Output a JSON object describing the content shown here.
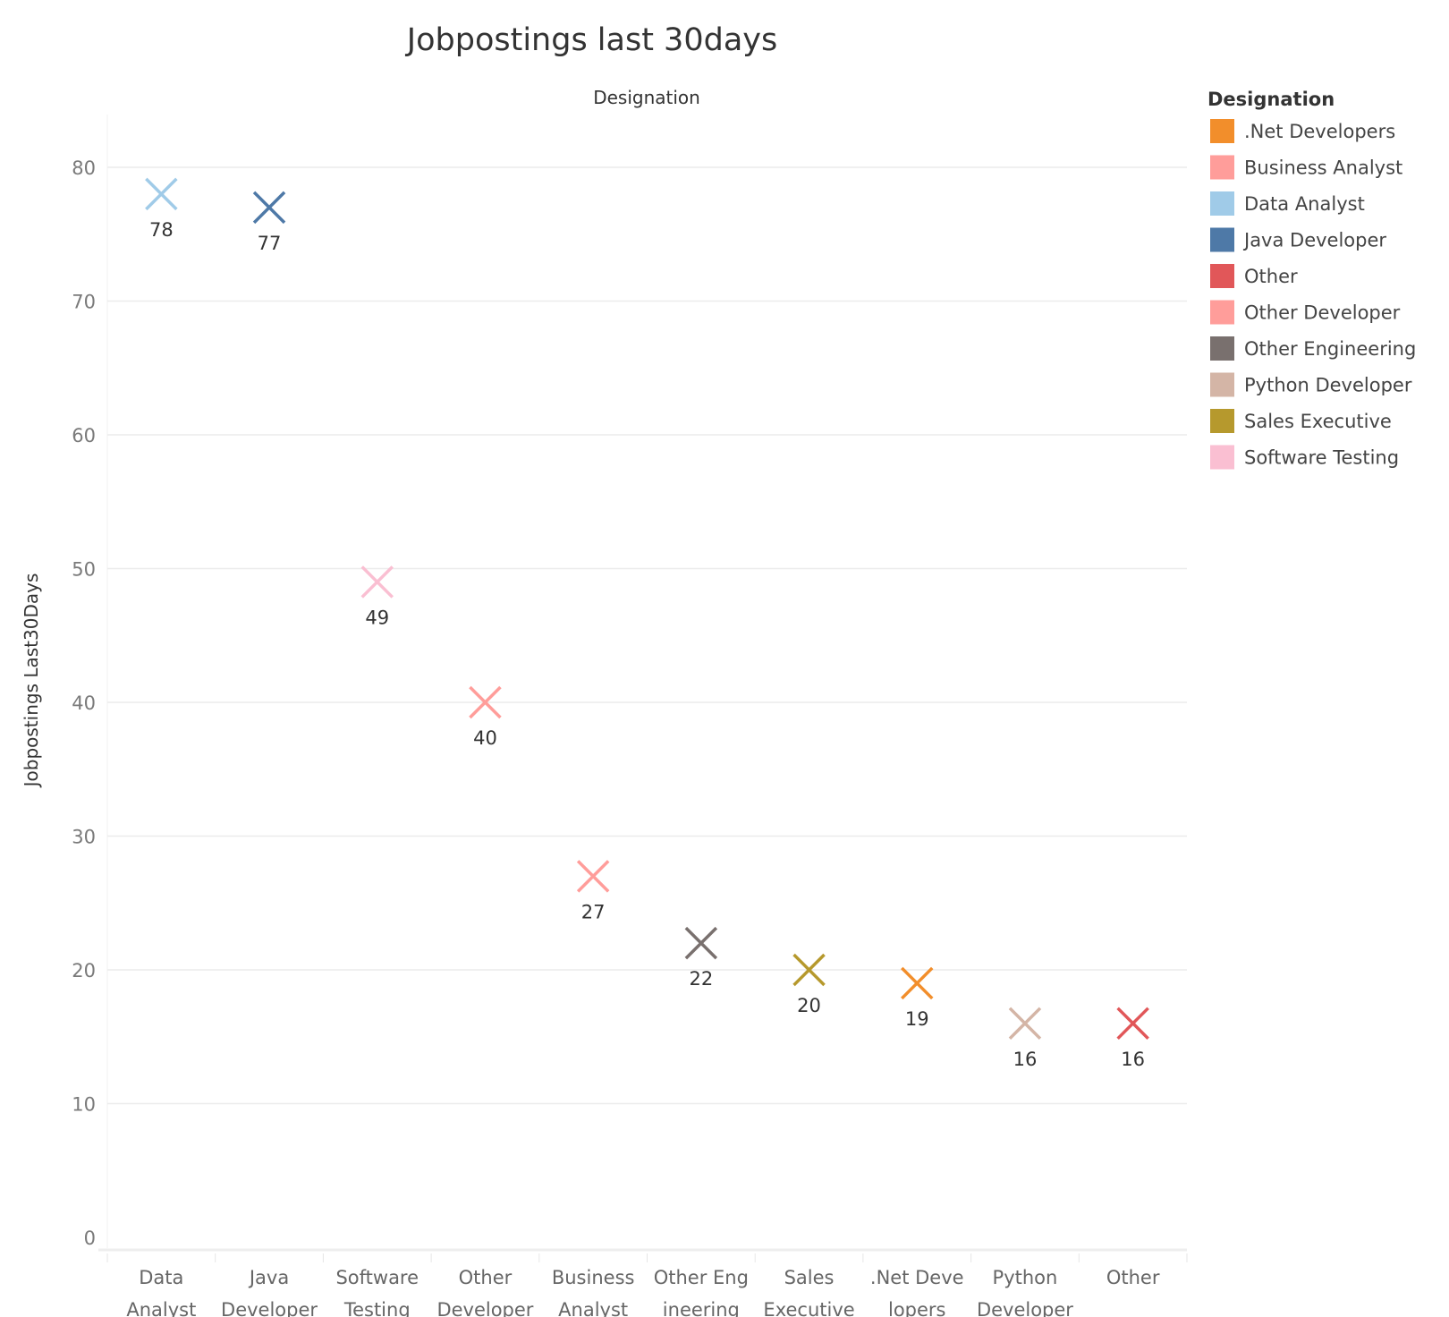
{
  "chart_data": {
    "type": "scatter",
    "title": "Jobpostings last 30days",
    "column_header": "Designation",
    "ylabel": "Jobpostings Last30Days",
    "ylim": [
      0,
      84
    ],
    "yticks": [
      0,
      10,
      20,
      30,
      40,
      50,
      60,
      70,
      80
    ],
    "grid": true,
    "marker": "x",
    "categories": [
      {
        "name": "Data Analyst",
        "label_lines": [
          "Data",
          "Analyst"
        ],
        "value": 78,
        "color": "#a0cbe8"
      },
      {
        "name": "Java Developer",
        "label_lines": [
          "Java",
          "Developer"
        ],
        "value": 77,
        "color": "#4e79a7"
      },
      {
        "name": "Software Testing",
        "label_lines": [
          "Software",
          "Testing"
        ],
        "value": 49,
        "color": "#fabfd2"
      },
      {
        "name": "Other Developer",
        "label_lines": [
          "Other",
          "Developer"
        ],
        "value": 40,
        "color": "#ff9d9a"
      },
      {
        "name": "Business Analyst",
        "label_lines": [
          "Business",
          "Analyst"
        ],
        "value": 27,
        "color": "#ff9d9a"
      },
      {
        "name": "Other Engineering",
        "label_lines": [
          "Other Eng",
          "ineering"
        ],
        "value": 22,
        "color": "#79706e"
      },
      {
        "name": "Sales Executive",
        "label_lines": [
          "Sales",
          "Executive"
        ],
        "value": 20,
        "color": "#b6992d"
      },
      {
        "name": ".Net Developers",
        "label_lines": [
          ".Net Deve",
          "lopers"
        ],
        "value": 19,
        "color": "#f28e2b"
      },
      {
        "name": "Python Developer",
        "label_lines": [
          "Python",
          "Developer"
        ],
        "value": 16,
        "color": "#d4b5a6"
      },
      {
        "name": "Other",
        "label_lines": [
          "Other",
          ""
        ],
        "value": 16,
        "color": "#e15759"
      }
    ],
    "legend": {
      "title": "Designation",
      "placement": "right",
      "items": [
        {
          "label": ".Net Developers",
          "color": "#f28e2b"
        },
        {
          "label": "Business Analyst",
          "color": "#ff9d9a"
        },
        {
          "label": "Data Analyst",
          "color": "#a0cbe8"
        },
        {
          "label": "Java Developer",
          "color": "#4e79a7"
        },
        {
          "label": "Other",
          "color": "#e15759"
        },
        {
          "label": "Other Developer",
          "color": "#ff9d9a"
        },
        {
          "label": "Other Engineering",
          "color": "#79706e"
        },
        {
          "label": "Python Developer",
          "color": "#d4b5a6"
        },
        {
          "label": "Sales Executive",
          "color": "#b6992d"
        },
        {
          "label": "Software Testing",
          "color": "#fabfd2"
        }
      ]
    }
  }
}
